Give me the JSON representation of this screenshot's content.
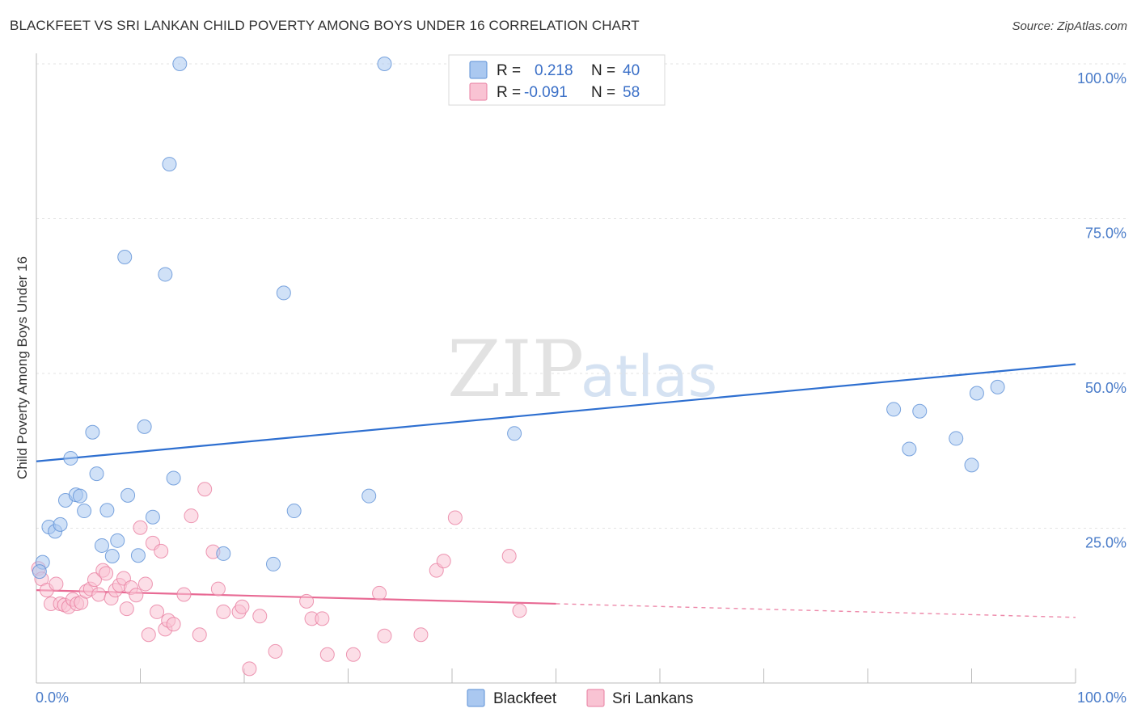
{
  "header": {
    "title": "BLACKFEET VS SRI LANKAN CHILD POVERTY AMONG BOYS UNDER 16 CORRELATION CHART",
    "source": "Source: ZipAtlas.com"
  },
  "watermark": {
    "zip": "ZIP",
    "atlas": "atlas"
  },
  "legend": {
    "rows": [
      {
        "r_label": "R =",
        "r_value": "0.218",
        "n_label": "N =",
        "n_value": "40",
        "color": "#aac8f0",
        "stroke": "#5b8fd6"
      },
      {
        "r_label": "R =",
        "r_value": "-0.091",
        "n_label": "N =",
        "n_value": "58",
        "color": "#f9c3d3",
        "stroke": "#e87ea0"
      }
    ]
  },
  "bottom_legend": {
    "items": [
      {
        "label": "Blackfeet",
        "color": "#aac8f0",
        "stroke": "#5b8fd6"
      },
      {
        "label": "Sri Lankans",
        "color": "#f9c3d3",
        "stroke": "#e87ea0"
      }
    ]
  },
  "chart_data": {
    "type": "scatter",
    "title": "BLACKFEET VS SRI LANKAN CHILD POVERTY AMONG BOYS UNDER 16 CORRELATION CHART",
    "xlabel": "",
    "ylabel": "Child Poverty Among Boys Under 16",
    "xlim": [
      0,
      100
    ],
    "ylim": [
      0,
      100
    ],
    "x_tick_labels": [
      "0.0%",
      "100.0%"
    ],
    "y_ticks": [
      25,
      50,
      75,
      100
    ],
    "y_tick_labels": [
      "25.0%",
      "50.0%",
      "75.0%",
      "100.0%"
    ],
    "grid": true,
    "legend_position": "top-center",
    "series": [
      {
        "name": "Blackfeet",
        "color": "#5b8fd6",
        "fill": "#aac8f0",
        "trend": {
          "x": [
            0,
            100
          ],
          "y": [
            35.8,
            51.5
          ],
          "style": "solid"
        },
        "points": [
          [
            0.6,
            19.5
          ],
          [
            1.2,
            25.2
          ],
          [
            1.8,
            24.5
          ],
          [
            2.3,
            25.6
          ],
          [
            2.8,
            29.5
          ],
          [
            3.3,
            36.3
          ],
          [
            3.8,
            30.4
          ],
          [
            4.2,
            30.2
          ],
          [
            4.6,
            27.8
          ],
          [
            5.4,
            40.5
          ],
          [
            5.8,
            33.8
          ],
          [
            6.3,
            22.2
          ],
          [
            6.8,
            27.9
          ],
          [
            7.3,
            20.5
          ],
          [
            7.8,
            23.0
          ],
          [
            8.5,
            68.8
          ],
          [
            8.8,
            30.3
          ],
          [
            9.8,
            20.6
          ],
          [
            10.4,
            41.4
          ],
          [
            11.2,
            26.8
          ],
          [
            12.4,
            66.0
          ],
          [
            12.8,
            83.8
          ],
          [
            13.2,
            33.1
          ],
          [
            13.8,
            100.0
          ],
          [
            18.0,
            20.9
          ],
          [
            22.8,
            19.2
          ],
          [
            23.8,
            63.0
          ],
          [
            24.8,
            27.8
          ],
          [
            32.0,
            30.2
          ],
          [
            33.5,
            100.0
          ],
          [
            46.0,
            40.3
          ],
          [
            47.0,
            100.0
          ],
          [
            82.5,
            44.2
          ],
          [
            84.0,
            37.8
          ],
          [
            85.0,
            43.9
          ],
          [
            88.5,
            39.5
          ],
          [
            90.0,
            35.2
          ],
          [
            90.5,
            46.8
          ],
          [
            92.5,
            47.8
          ],
          [
            0.3,
            18.0
          ]
        ]
      },
      {
        "name": "Sri Lankans",
        "color": "#e87ea0",
        "fill": "#f9c3d3",
        "trend": {
          "x": [
            0,
            50,
            100
          ],
          "y": [
            15.0,
            12.8,
            10.6
          ],
          "solid_until": 50
        },
        "points": [
          [
            0.2,
            18.5
          ],
          [
            0.5,
            16.8
          ],
          [
            1.0,
            15.0
          ],
          [
            1.4,
            12.8
          ],
          [
            1.9,
            16.0
          ],
          [
            2.3,
            12.8
          ],
          [
            2.7,
            12.6
          ],
          [
            3.1,
            12.3
          ],
          [
            3.5,
            13.5
          ],
          [
            3.9,
            12.8
          ],
          [
            4.3,
            13.0
          ],
          [
            4.8,
            14.8
          ],
          [
            5.2,
            15.2
          ],
          [
            5.6,
            16.7
          ],
          [
            6.0,
            14.3
          ],
          [
            6.4,
            18.2
          ],
          [
            6.7,
            17.7
          ],
          [
            7.2,
            13.7
          ],
          [
            7.6,
            15.0
          ],
          [
            8.0,
            15.8
          ],
          [
            8.4,
            16.9
          ],
          [
            8.7,
            12.0
          ],
          [
            9.1,
            15.4
          ],
          [
            9.6,
            14.2
          ],
          [
            10.0,
            25.1
          ],
          [
            10.5,
            16.0
          ],
          [
            10.8,
            7.8
          ],
          [
            11.2,
            22.6
          ],
          [
            11.6,
            11.5
          ],
          [
            12.0,
            21.3
          ],
          [
            12.4,
            8.7
          ],
          [
            12.7,
            10.1
          ],
          [
            13.2,
            9.5
          ],
          [
            14.2,
            14.3
          ],
          [
            14.9,
            27.0
          ],
          [
            15.7,
            7.8
          ],
          [
            16.2,
            31.3
          ],
          [
            17.0,
            21.2
          ],
          [
            17.5,
            15.2
          ],
          [
            18.0,
            11.5
          ],
          [
            19.5,
            11.5
          ],
          [
            19.8,
            12.3
          ],
          [
            20.5,
            2.3
          ],
          [
            21.5,
            10.8
          ],
          [
            23.0,
            5.1
          ],
          [
            26.0,
            13.2
          ],
          [
            26.5,
            10.4
          ],
          [
            27.5,
            10.4
          ],
          [
            28.0,
            4.6
          ],
          [
            30.5,
            4.6
          ],
          [
            33.0,
            14.5
          ],
          [
            33.5,
            7.6
          ],
          [
            37.0,
            7.8
          ],
          [
            38.5,
            18.2
          ],
          [
            39.2,
            19.7
          ],
          [
            40.3,
            26.7
          ],
          [
            45.5,
            20.5
          ],
          [
            46.5,
            11.7
          ]
        ]
      }
    ]
  }
}
